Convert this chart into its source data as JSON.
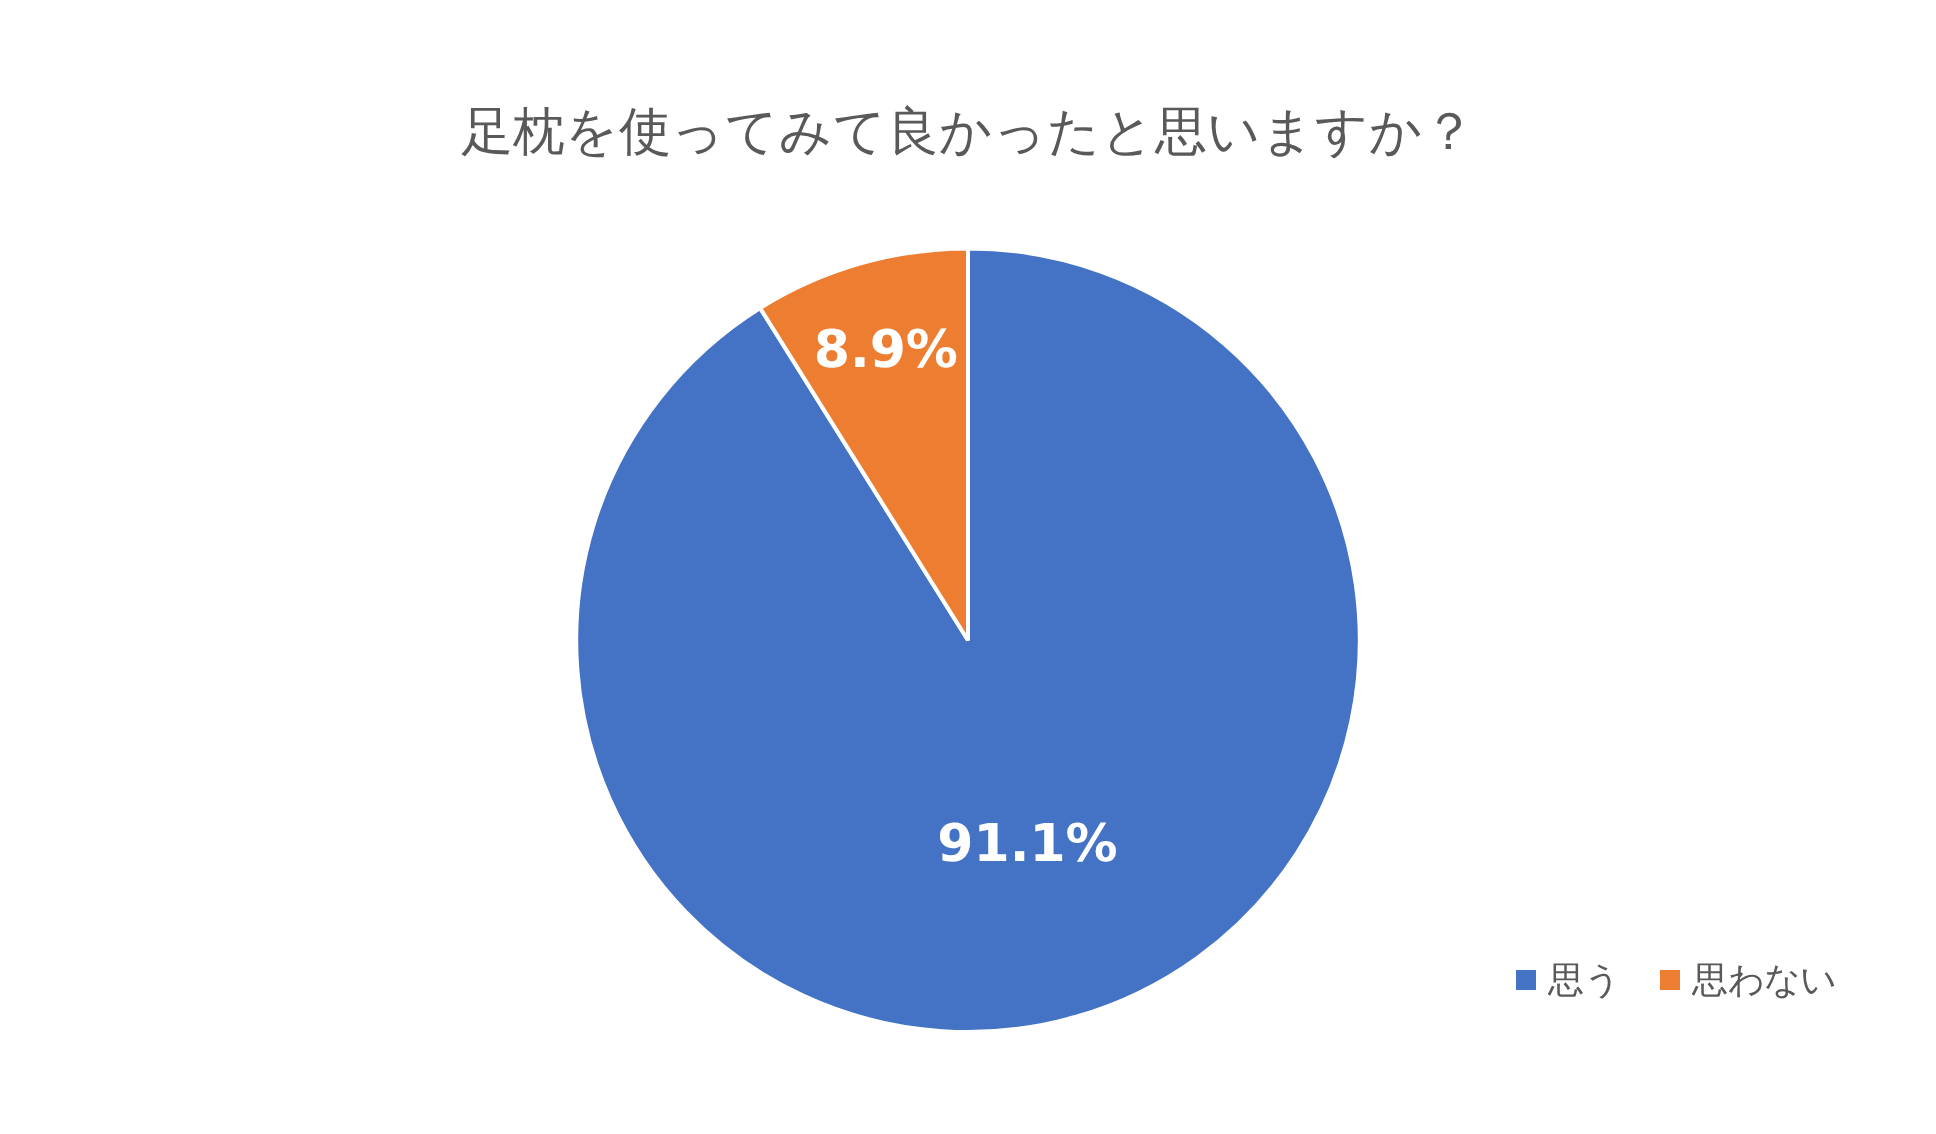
{
  "chart_data": {
    "type": "pie",
    "title": "足枕を使ってみて良かったと思いますか？",
    "categories": [
      "思う",
      "思わない"
    ],
    "values": [
      91.1,
      8.9
    ],
    "value_labels": [
      "91.1%",
      "8.9%"
    ],
    "colors": [
      "#4472c4",
      "#ed7d31"
    ],
    "legend": "bottom right"
  }
}
